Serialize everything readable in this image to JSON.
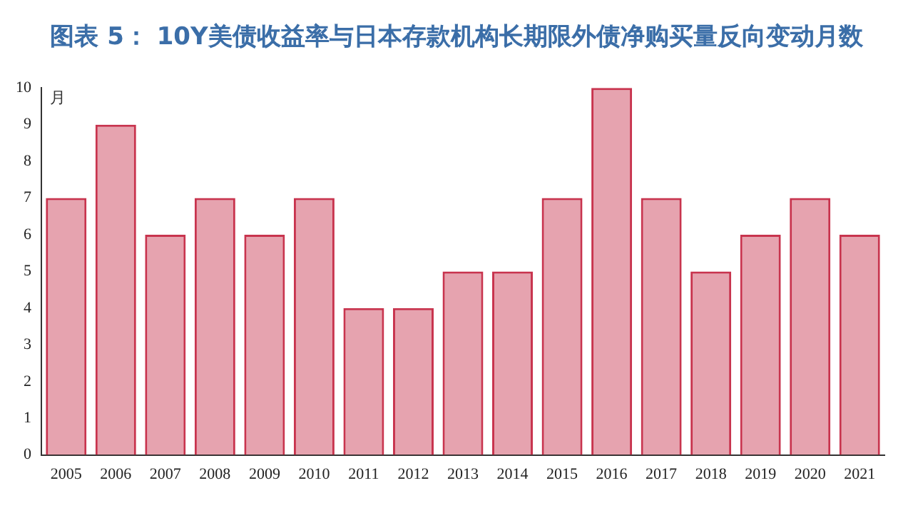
{
  "chart_data": {
    "type": "bar",
    "title": "图表 5： 10Y美债收益率与日本存款机构长期限外债净购买量反向变动月数",
    "ylabel": "月",
    "categories": [
      "2005",
      "2006",
      "2007",
      "2008",
      "2009",
      "2010",
      "2011",
      "2012",
      "2013",
      "2014",
      "2015",
      "2016",
      "2017",
      "2018",
      "2019",
      "2020",
      "2021"
    ],
    "values": [
      7,
      9,
      6,
      7,
      6,
      7,
      4,
      4,
      5,
      5,
      7,
      10,
      7,
      5,
      6,
      7,
      6
    ],
    "color": "#c8344e",
    "ylim": [
      0,
      10
    ],
    "yticks": [
      0,
      1,
      2,
      3,
      4,
      5,
      6,
      7,
      8,
      9,
      10
    ],
    "grid": false,
    "legend": false
  }
}
